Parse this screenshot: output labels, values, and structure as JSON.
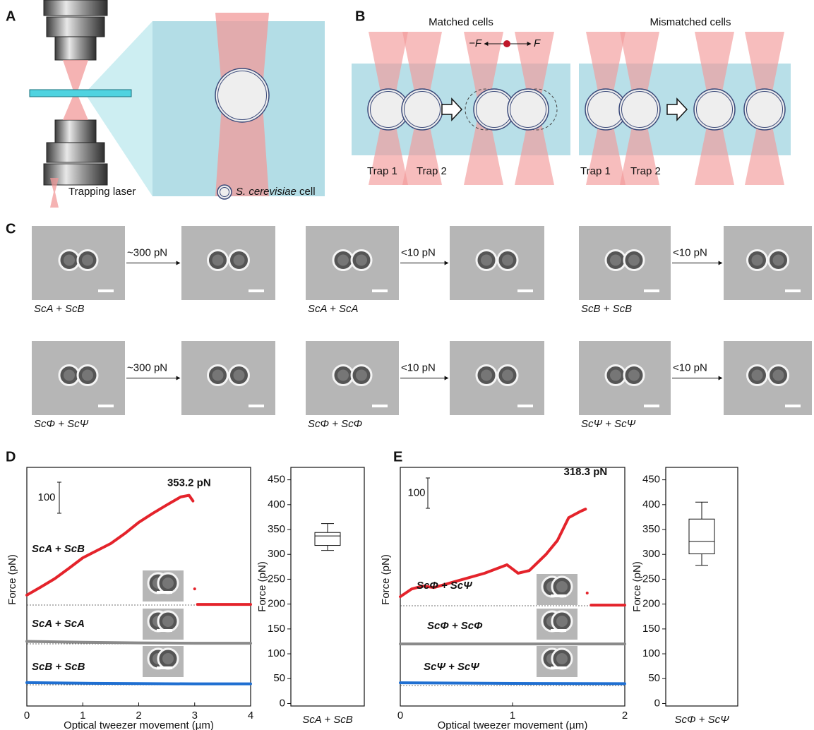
{
  "panel_labels": [
    "A",
    "B",
    "C",
    "D",
    "E"
  ],
  "panel_a": {
    "laser_label": "Trapping laser",
    "cell_species": "S. cerevisiae",
    "cell_word": "cell"
  },
  "panel_b": {
    "titles": [
      "Matched cells",
      "Mismatched cells"
    ],
    "force_labels": [
      "−F",
      "F"
    ],
    "trap_labels": [
      "Trap 1",
      "Trap 2",
      "Trap 1",
      "Trap 2"
    ]
  },
  "panel_c": {
    "rows": [
      {
        "pair": "ScA + ScB",
        "force": "~300 pN"
      },
      {
        "pair": "ScA + ScA",
        "force": "<10 pN"
      },
      {
        "pair": "ScB + ScB",
        "force": "<10 pN"
      },
      {
        "pair": "ScΦ + ScΨ",
        "force": "~300 pN"
      },
      {
        "pair": "ScΦ + ScΦ",
        "force": "<10 pN"
      },
      {
        "pair": "ScΨ + ScΨ",
        "force": "<10 pN"
      }
    ]
  },
  "chart_data": [
    {
      "type": "line",
      "xlabel": "Optical tweezer movement (µm)",
      "ylabel": "Force (pN)",
      "xlim": [
        0,
        4
      ],
      "xticks": [
        0,
        1,
        2,
        3,
        4
      ],
      "scale_bar": 100,
      "series": [
        {
          "name": "ScA + ScB",
          "color": "#e4232b",
          "x": [
            0,
            0.25,
            0.5,
            0.75,
            1,
            1.25,
            1.5,
            1.75,
            2,
            2.25,
            2.5,
            2.75,
            2.9,
            2.97,
            2.99,
            3,
            3.02,
            3.05,
            3.5,
            4
          ],
          "values": [
            32,
            58,
            85,
            118,
            152,
            175,
            198,
            230,
            266,
            295,
            322,
            348,
            353.2,
            335,
            null,
            52,
            null,
            2,
            2,
            2
          ],
          "value_labels": [
            null,
            null,
            null,
            null,
            null,
            null,
            null,
            null,
            null,
            null,
            null,
            null,
            "353.2 pN",
            null,
            null,
            null,
            null,
            null,
            null,
            null
          ]
        },
        {
          "name": "ScA + ScA",
          "color": "#8a8a8a",
          "x": [
            0,
            1,
            2,
            3,
            4
          ],
          "values": [
            8,
            5,
            3,
            2,
            2
          ]
        },
        {
          "name": "ScB + ScB",
          "color": "#1f6fd1",
          "x": [
            0,
            1,
            2,
            3,
            4
          ],
          "values": [
            7,
            5,
            4,
            3,
            3
          ]
        }
      ]
    },
    {
      "type": "box",
      "ylabel": "Force (pN)",
      "ylim": [
        -5,
        475
      ],
      "yticks": [
        0,
        50,
        100,
        150,
        200,
        250,
        300,
        350,
        400,
        450
      ],
      "categories": [
        "ScA + ScB"
      ],
      "boxes": [
        {
          "min": 308,
          "q1": 318,
          "median": 337,
          "q3": 344,
          "max": 362
        }
      ]
    },
    {
      "type": "line",
      "xlabel": "Optical tweezer movement (µm)",
      "ylabel": "Force (pN)",
      "xlim": [
        0,
        2
      ],
      "xticks": [
        0,
        1,
        2
      ],
      "scale_bar": 100,
      "series": [
        {
          "name": "ScΦ + ScΨ",
          "color": "#e4232b",
          "x": [
            0,
            0.1,
            0.2,
            0.3,
            0.5,
            0.75,
            0.95,
            1.05,
            1.15,
            1.3,
            1.4,
            1.5,
            1.6,
            1.65,
            1.66,
            1.665,
            1.67,
            1.7,
            2
          ],
          "values": [
            30,
            55,
            65,
            60,
            81,
            107,
            135,
            107,
            116,
            170,
            215,
            290,
            310,
            318.3,
            null,
            42,
            null,
            2,
            2
          ],
          "value_labels": [
            null,
            null,
            null,
            null,
            null,
            null,
            null,
            null,
            null,
            null,
            null,
            null,
            null,
            "318.3 pN",
            null,
            null,
            null,
            null,
            null
          ]
        },
        {
          "name": "ScΦ + ScΦ",
          "color": "#8a8a8a",
          "x": [
            0,
            1,
            2
          ],
          "values": [
            2,
            2,
            2
          ]
        },
        {
          "name": "ScΨ + ScΨ",
          "color": "#1f6fd1",
          "x": [
            0,
            1,
            2
          ],
          "values": [
            9,
            7,
            6
          ]
        }
      ]
    },
    {
      "type": "box",
      "ylabel": "Force (pN)",
      "ylim": [
        -5,
        475
      ],
      "yticks": [
        0,
        50,
        100,
        150,
        200,
        250,
        300,
        350,
        400,
        450
      ],
      "categories": [
        "ScΦ + ScΨ"
      ],
      "boxes": [
        {
          "min": 278,
          "q1": 301,
          "median": 326,
          "q3": 371,
          "max": 405
        }
      ]
    }
  ]
}
